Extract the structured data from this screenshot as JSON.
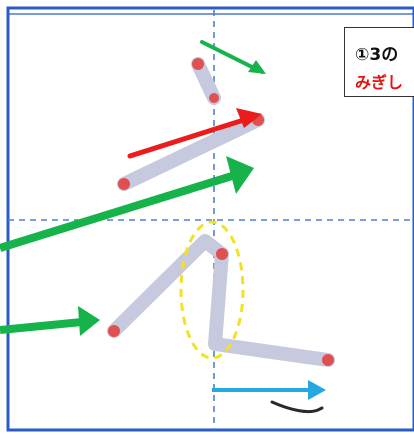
{
  "colors": {
    "page_bg": "#ffffff",
    "frame": "#2a5cc8",
    "guide": "#4f7fd6",
    "stroke": "#c7c9de",
    "stroke_dot": "#e05050",
    "arrow_green": "#16b34a",
    "arrow_red": "#ea1c1c",
    "arrow_cyan": "#24a8e0",
    "highlight_ellipse": "#f2e225",
    "note_text": "#111111",
    "note_text_red": "#e41414"
  },
  "note": {
    "line1": "①3の",
    "line2": "みぎし"
  },
  "icons": [
    "green-arrow-icon",
    "red-arrow-icon",
    "cyan-arrow-icon",
    "dashed-yellow-ellipse"
  ]
}
